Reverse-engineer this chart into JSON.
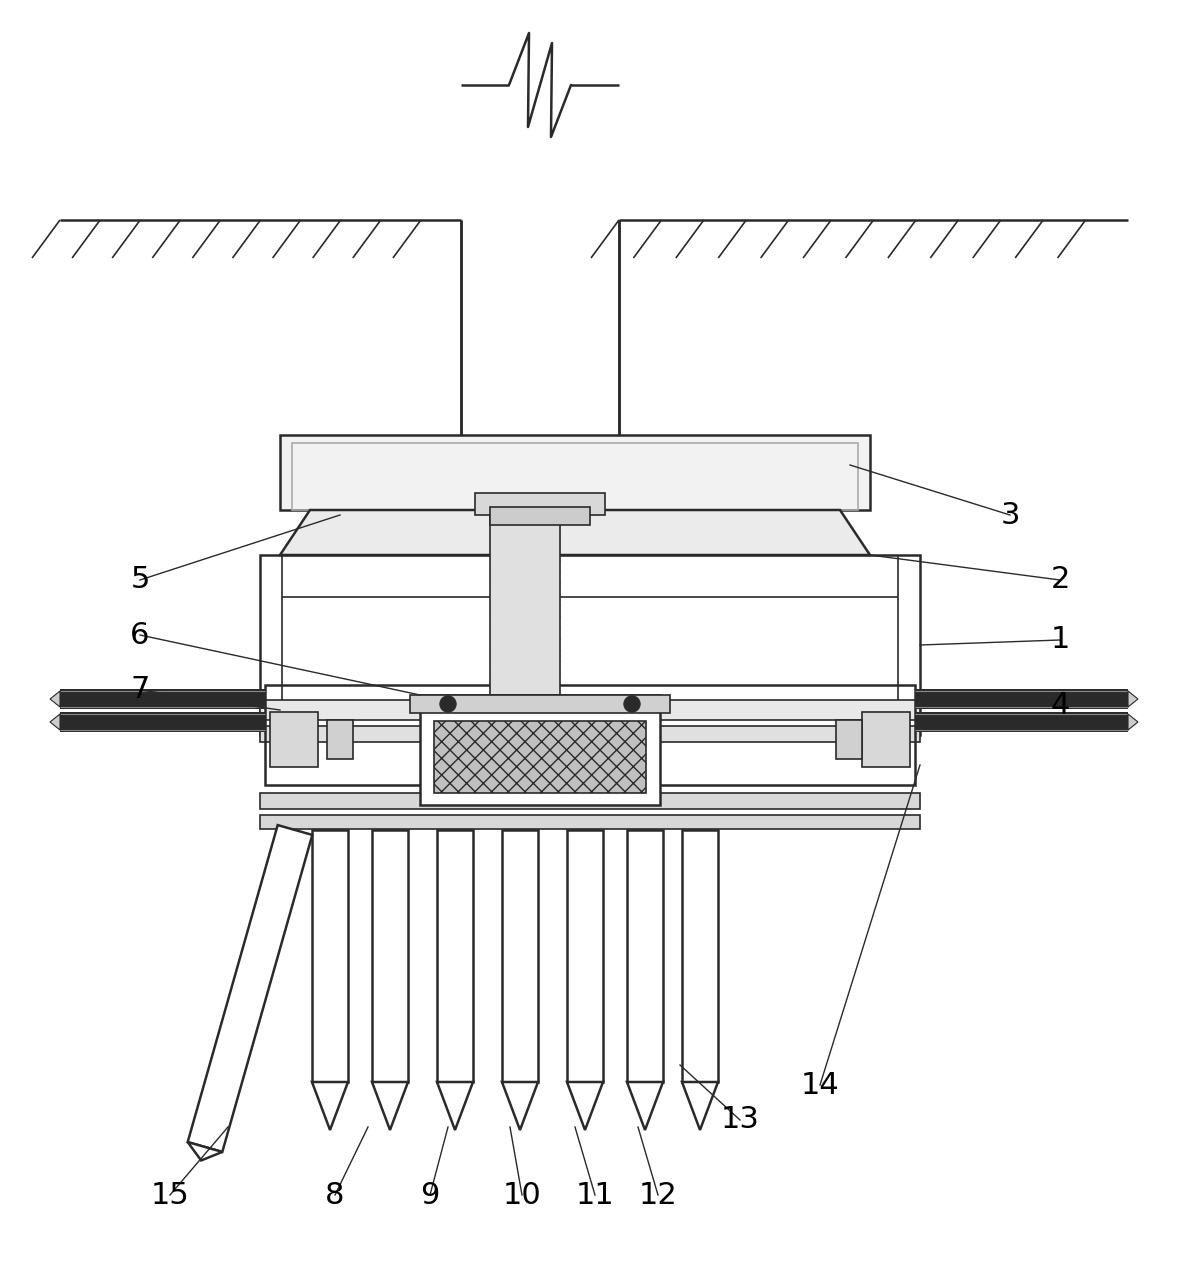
{
  "bg_color": "#ffffff",
  "lc": "#2a2a2a",
  "lw_main": 1.8,
  "lw_thin": 1.2,
  "lw_label": 1.0
}
